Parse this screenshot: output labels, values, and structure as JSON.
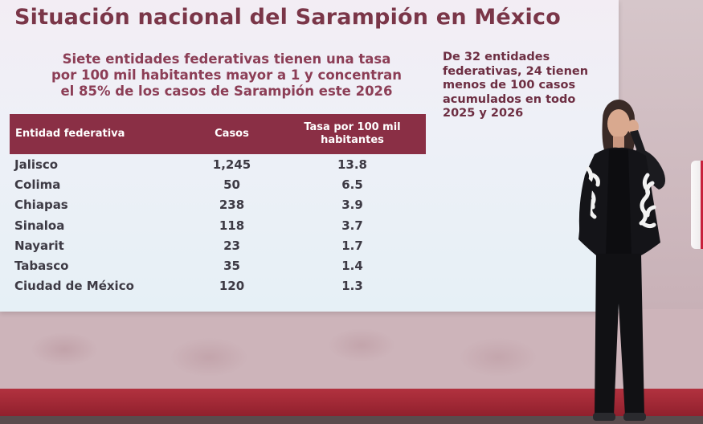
{
  "slide": {
    "title": "Situación nacional del Sarampión en México",
    "subtitle_lines": [
      "Siete entidades federativas tienen una tasa",
      "por 100 mil habitantes mayor a 1 y concentran",
      "el 85% de los casos de Sarampión este 2026"
    ],
    "side_note_lines": [
      "De 32 entidades",
      "federativas, 24 tienen",
      "menos de 100 casos",
      "acumulados en todo",
      "2025 y 2026"
    ],
    "table": {
      "headers": {
        "entity": "Entidad federativa",
        "cases": "Casos",
        "rate_line1": "Tasa por 100 mil",
        "rate_line2": "habitantes"
      },
      "rows": [
        {
          "entity": "Jalisco",
          "cases": "1,245",
          "rate": "13.8"
        },
        {
          "entity": "Colima",
          "cases": "50",
          "rate": "6.5"
        },
        {
          "entity": "Chiapas",
          "cases": "238",
          "rate": "3.9"
        },
        {
          "entity": "Sinaloa",
          "cases": "118",
          "rate": "3.7"
        },
        {
          "entity": "Nayarit",
          "cases": "23",
          "rate": "1.7"
        },
        {
          "entity": "Tabasco",
          "cases": "35",
          "rate": "1.4"
        },
        {
          "entity": "Ciudad de México",
          "cases": "120",
          "rate": "1.3"
        }
      ]
    }
  },
  "colors": {
    "title": "#7a3648",
    "header_bg": "#8a2f45",
    "band": "#b2323f"
  }
}
